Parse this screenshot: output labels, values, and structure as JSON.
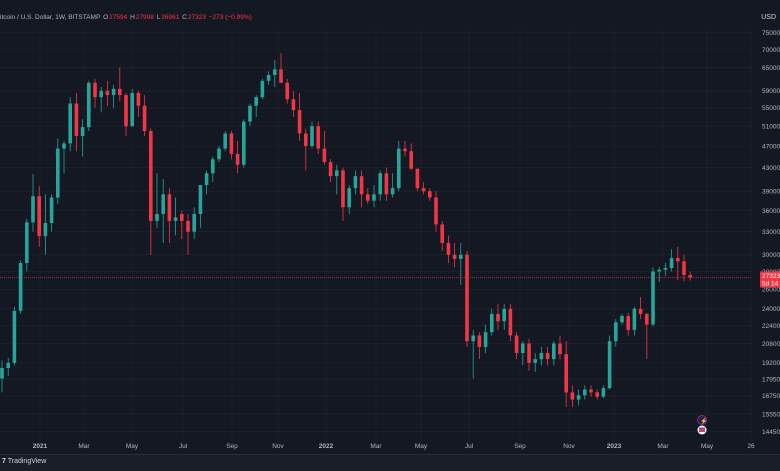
{
  "header": {
    "symbol": "itcoin / U.S. Dollar, 1W, BITSTAMP",
    "o_label": "O",
    "o_value": "27594",
    "h_label": "H",
    "h_value": "27998",
    "l_label": "L",
    "l_value": "26961",
    "c_label": "C",
    "c_value": "27323",
    "change": "−273 (−0.99%)"
  },
  "axis": {
    "currency": "USD"
  },
  "last_price": {
    "value": "27323",
    "countdown": "5d 14"
  },
  "footer": {
    "logo": "TradingView"
  },
  "events": {
    "flash_icon": "lightning-icon",
    "dividend_icon": "calendar-flag-icon"
  },
  "colors": {
    "up": "#26a69a",
    "down": "#f23645",
    "background": "#141823",
    "grid": "#1f2430"
  },
  "chart_data": {
    "type": "candlestick",
    "interval": "1W",
    "scale": "log",
    "y_ticks": [
      14450,
      15550,
      16750,
      17950,
      19200,
      20800,
      22400,
      24000,
      26000,
      28000,
      30000,
      33000,
      36000,
      39000,
      43000,
      47000,
      51000,
      55000,
      59000,
      65000,
      70000,
      75000
    ],
    "x_ticks": [
      "2021",
      "Mar",
      "May",
      "Jul",
      "Sep",
      "Nov",
      "2022",
      "Mar",
      "May",
      "Jul",
      "Sep",
      "Nov",
      "2023",
      "Mar",
      "May",
      "26"
    ],
    "candles": [
      [
        18000,
        19400,
        17000,
        18800
      ],
      [
        18800,
        19600,
        18200,
        19200
      ],
      [
        19200,
        24200,
        19000,
        23800
      ],
      [
        23800,
        29300,
        23500,
        29000
      ],
      [
        29000,
        34800,
        28000,
        34300
      ],
      [
        34300,
        41900,
        33000,
        38200
      ],
      [
        38200,
        39800,
        31000,
        32400
      ],
      [
        32400,
        38500,
        30000,
        34200
      ],
      [
        34200,
        38500,
        33000,
        38000
      ],
      [
        38000,
        48500,
        37000,
        46500
      ],
      [
        46500,
        48000,
        42000,
        47500
      ],
      [
        47500,
        57500,
        46000,
        56000
      ],
      [
        56000,
        58500,
        46000,
        49000
      ],
      [
        49000,
        52500,
        45000,
        50800
      ],
      [
        50800,
        61500,
        50000,
        61000
      ],
      [
        61000,
        62000,
        55000,
        57500
      ],
      [
        57500,
        60000,
        54000,
        59000
      ],
      [
        59000,
        61500,
        55500,
        58000
      ],
      [
        58000,
        60500,
        55000,
        59500
      ],
      [
        59500,
        65000,
        56500,
        58000
      ],
      [
        58000,
        58500,
        49000,
        51000
      ],
      [
        51000,
        59500,
        51000,
        58500
      ],
      [
        58500,
        59000,
        53000,
        55500
      ],
      [
        55500,
        58000,
        49000,
        50000
      ],
      [
        50000,
        50500,
        30000,
        34500
      ],
      [
        34500,
        42000,
        33500,
        35500
      ],
      [
        35500,
        41000,
        31500,
        38500
      ],
      [
        38500,
        39500,
        31500,
        34500
      ],
      [
        34500,
        38000,
        32500,
        35000
      ],
      [
        35500,
        36000,
        32000,
        34500
      ],
      [
        34500,
        35500,
        30000,
        33000
      ],
      [
        33000,
        36500,
        32000,
        35500
      ],
      [
        35500,
        40000,
        33500,
        40000
      ],
      [
        40000,
        42500,
        38500,
        42000
      ],
      [
        42000,
        45000,
        40500,
        44500
      ],
      [
        44500,
        47000,
        44000,
        46500
      ],
      [
        46500,
        50000,
        46000,
        49500
      ],
      [
        49500,
        50000,
        44500,
        45500
      ],
      [
        45500,
        48000,
        42000,
        43500
      ],
      [
        43500,
        52500,
        43000,
        52000
      ],
      [
        52000,
        56000,
        51000,
        55500
      ],
      [
        55500,
        58000,
        53000,
        57500
      ],
      [
        57500,
        62000,
        57000,
        61500
      ],
      [
        61500,
        64000,
        60500,
        63000
      ],
      [
        63000,
        67000,
        60000,
        64500
      ],
      [
        64500,
        69000,
        61000,
        61000
      ],
      [
        61000,
        62000,
        56000,
        57000
      ],
      [
        57000,
        59000,
        53000,
        54500
      ],
      [
        54500,
        58500,
        48000,
        49500
      ],
      [
        49500,
        50500,
        42500,
        47000
      ],
      [
        47000,
        52000,
        46500,
        51000
      ],
      [
        51000,
        52000,
        45500,
        46500
      ],
      [
        46500,
        50000,
        43500,
        44000
      ],
      [
        44000,
        44500,
        40500,
        41500
      ],
      [
        41500,
        43500,
        38500,
        42500
      ],
      [
        42500,
        43000,
        34500,
        36500
      ],
      [
        36500,
        40000,
        35500,
        39500
      ],
      [
        39500,
        42500,
        38500,
        41500
      ],
      [
        41500,
        42500,
        36500,
        38500
      ],
      [
        38500,
        39500,
        37000,
        37500
      ],
      [
        37500,
        40000,
        36500,
        38500
      ],
      [
        38500,
        42500,
        37500,
        42000
      ],
      [
        42000,
        43000,
        37500,
        38500
      ],
      [
        38500,
        42000,
        38000,
        39500
      ],
      [
        39500,
        48000,
        39000,
        46500
      ],
      [
        46500,
        48000,
        45000,
        46000
      ],
      [
        46000,
        47500,
        42500,
        42800
      ],
      [
        42800,
        42800,
        39000,
        39500
      ],
      [
        39500,
        40500,
        38500,
        39000
      ],
      [
        39000,
        39500,
        37500,
        38000
      ],
      [
        38000,
        39000,
        33000,
        34000
      ],
      [
        34000,
        34500,
        30500,
        31500
      ],
      [
        31500,
        32500,
        29000,
        30000
      ],
      [
        30000,
        31500,
        28500,
        29500
      ],
      [
        29500,
        31500,
        26500,
        30000
      ],
      [
        30000,
        30500,
        20500,
        21000
      ],
      [
        21000,
        22000,
        18000,
        21500
      ],
      [
        21500,
        21800,
        19500,
        20500
      ],
      [
        20500,
        22500,
        20000,
        21800
      ],
      [
        21800,
        24000,
        21500,
        23500
      ],
      [
        23500,
        24500,
        22000,
        22800
      ],
      [
        22800,
        24500,
        22000,
        24000
      ],
      [
        24000,
        24500,
        21000,
        21500
      ],
      [
        21500,
        21800,
        19500,
        20000
      ],
      [
        20000,
        21000,
        19000,
        20800
      ],
      [
        20800,
        21200,
        18600,
        19200
      ],
      [
        19200,
        20000,
        18500,
        19500
      ],
      [
        19500,
        20500,
        19000,
        20000
      ],
      [
        20000,
        20500,
        19000,
        19500
      ],
      [
        19500,
        21000,
        19000,
        20800
      ],
      [
        20800,
        21500,
        19500,
        19900
      ],
      [
        19900,
        21000,
        16000,
        17000
      ],
      [
        17000,
        17500,
        16000,
        16500
      ],
      [
        16500,
        17200,
        16100,
        16800
      ],
      [
        16800,
        17500,
        16500,
        17200
      ],
      [
        17200,
        17500,
        16700,
        17000
      ],
      [
        17000,
        17200,
        16500,
        16700
      ],
      [
        16700,
        17500,
        16600,
        17300
      ],
      [
        17300,
        21500,
        17200,
        21000
      ],
      [
        21000,
        23000,
        20500,
        22700
      ],
      [
        22700,
        23500,
        22500,
        23300
      ],
      [
        23300,
        23600,
        21500,
        22000
      ],
      [
        22000,
        24200,
        21500,
        24000
      ],
      [
        24000,
        25200,
        23000,
        23500
      ],
      [
        23500,
        23600,
        19500,
        22500
      ],
      [
        22500,
        28500,
        22300,
        28000
      ],
      [
        28000,
        28500,
        26800,
        28200
      ],
      [
        28200,
        29000,
        27500,
        28400
      ],
      [
        28400,
        30700,
        28000,
        29600
      ],
      [
        29600,
        31000,
        27000,
        29200
      ],
      [
        29200,
        30000,
        26900,
        27600
      ],
      [
        27594,
        27998,
        26961,
        27323
      ]
    ]
  }
}
